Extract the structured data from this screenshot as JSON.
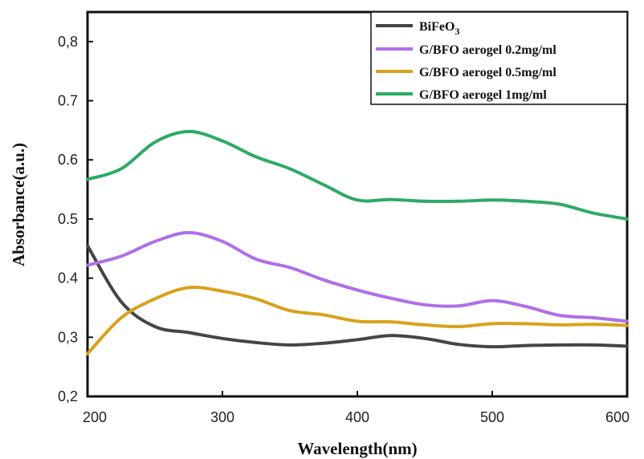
{
  "chart_data": {
    "type": "line",
    "xlabel": "Wavelength(nm)",
    "ylabel": "Absorbance(a.u.)",
    "xlim": [
      200,
      600
    ],
    "ylim": [
      0.2,
      0.85
    ],
    "xticks": [
      200,
      300,
      400,
      500,
      600
    ],
    "xtick_labels": [
      "200",
      "300",
      "400",
      "500",
      "600"
    ],
    "yticks": [
      0.2,
      0.3,
      0.4,
      0.5,
      0.6,
      0.7,
      0.8
    ],
    "ytick_labels": [
      "0,2",
      "0,3",
      "0.4",
      "0.5",
      "0.6",
      "0.7",
      "0,8"
    ],
    "grid": false,
    "legend_position": "top-right",
    "x": [
      200,
      225,
      250,
      275,
      300,
      325,
      350,
      375,
      400,
      425,
      450,
      475,
      500,
      525,
      550,
      575,
      600
    ],
    "series": [
      {
        "name": "BiFeO",
        "name_subscript": "3",
        "color": "#454545",
        "values": [
          0.455,
          0.36,
          0.318,
          0.308,
          0.298,
          0.291,
          0.287,
          0.29,
          0.296,
          0.303,
          0.298,
          0.288,
          0.284,
          0.286,
          0.287,
          0.287,
          0.285
        ]
      },
      {
        "name": "G/BFO aerogel 0.2mg/ml",
        "color": "#b06ee8",
        "values": [
          0.422,
          0.437,
          0.462,
          0.477,
          0.462,
          0.432,
          0.418,
          0.397,
          0.38,
          0.366,
          0.355,
          0.353,
          0.362,
          0.352,
          0.337,
          0.333,
          0.327
        ]
      },
      {
        "name": "G/BFO aerogel 0.5mg/ml",
        "color": "#d9a11c",
        "values": [
          0.272,
          0.333,
          0.365,
          0.384,
          0.378,
          0.365,
          0.345,
          0.338,
          0.327,
          0.326,
          0.321,
          0.318,
          0.323,
          0.323,
          0.321,
          0.322,
          0.32
        ]
      },
      {
        "name": "G/BFO aerogel 1mg/ml",
        "color": "#2daa65",
        "values": [
          0.567,
          0.585,
          0.63,
          0.648,
          0.632,
          0.605,
          0.585,
          0.558,
          0.532,
          0.533,
          0.53,
          0.53,
          0.532,
          0.53,
          0.525,
          0.51,
          0.5
        ]
      }
    ]
  }
}
